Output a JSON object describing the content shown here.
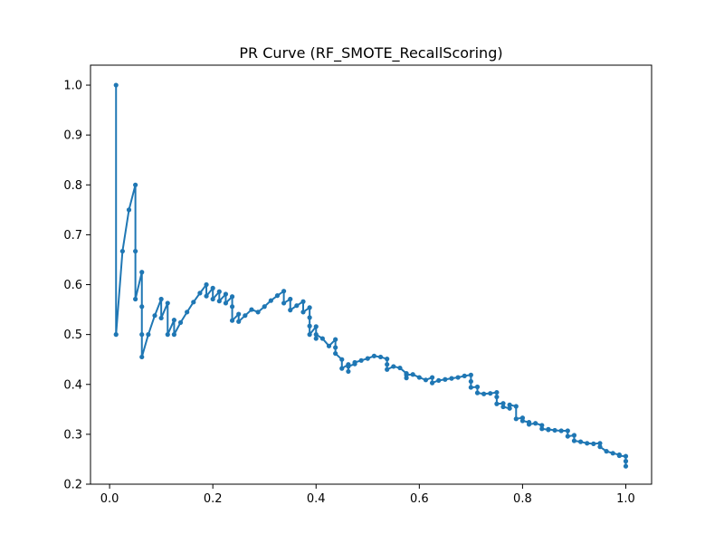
{
  "chart_data": {
    "type": "line",
    "title": "PR Curve (RF_SMOTE_RecallScoring)",
    "xlabel": "",
    "ylabel": "",
    "xlim": [
      -0.037,
      1.05
    ],
    "ylim": [
      0.2,
      1.04
    ],
    "xticks": [
      0.0,
      0.2,
      0.4,
      0.6,
      0.8,
      1.0
    ],
    "xtick_labels": [
      "0.0",
      "0.2",
      "0.4",
      "0.6",
      "0.8",
      "1.0"
    ],
    "yticks": [
      0.2,
      0.3,
      0.4,
      0.5,
      0.6,
      0.7,
      0.8,
      0.9,
      1.0
    ],
    "ytick_labels": [
      "0.2",
      "0.3",
      "0.4",
      "0.5",
      "0.6",
      "0.7",
      "0.8",
      "0.9",
      "1.0"
    ],
    "grid": false,
    "series": [
      {
        "color": "#1f77b4",
        "marker": "circle",
        "x": [
          0.0125,
          0.0125,
          0.025,
          0.0375,
          0.05,
          0.05,
          0.05,
          0.0625,
          0.0625,
          0.0625,
          0.0625,
          0.075,
          0.0875,
          0.1,
          0.1,
          0.1125,
          0.1125,
          0.125,
          0.125,
          0.1375,
          0.15,
          0.1625,
          0.175,
          0.1875,
          0.1875,
          0.2,
          0.2,
          0.2125,
          0.2125,
          0.225,
          0.225,
          0.2375,
          0.2375,
          0.2375,
          0.25,
          0.25,
          0.2625,
          0.275,
          0.2875,
          0.3,
          0.3125,
          0.325,
          0.3375,
          0.3375,
          0.35,
          0.35,
          0.3625,
          0.375,
          0.375,
          0.3875,
          0.3875,
          0.3875,
          0.3875,
          0.4,
          0.4,
          0.4,
          0.4125,
          0.425,
          0.4375,
          0.4375,
          0.4375,
          0.45,
          0.45,
          0.4625,
          0.4625,
          0.4625,
          0.475,
          0.475,
          0.4875,
          0.5,
          0.5125,
          0.525,
          0.5375,
          0.5375,
          0.5375,
          0.55,
          0.5625,
          0.575,
          0.575,
          0.575,
          0.5875,
          0.6,
          0.6125,
          0.625,
          0.625,
          0.6375,
          0.65,
          0.6625,
          0.675,
          0.6875,
          0.7,
          0.7,
          0.7,
          0.7125,
          0.7125,
          0.725,
          0.7375,
          0.75,
          0.75,
          0.75,
          0.7625,
          0.7625,
          0.775,
          0.775,
          0.7875,
          0.7875,
          0.8,
          0.8,
          0.8125,
          0.8125,
          0.825,
          0.8375,
          0.8375,
          0.85,
          0.85,
          0.8625,
          0.875,
          0.8875,
          0.8875,
          0.9,
          0.9,
          0.9125,
          0.925,
          0.9375,
          0.95,
          0.95,
          0.9625,
          0.975,
          0.9875,
          0.9875,
          1.0,
          1.0,
          1.0
        ],
        "y": [
          1.0,
          0.5,
          0.667,
          0.75,
          0.8,
          0.667,
          0.571,
          0.625,
          0.556,
          0.5,
          0.455,
          0.5,
          0.538,
          0.571,
          0.533,
          0.563,
          0.5,
          0.529,
          0.5,
          0.524,
          0.545,
          0.565,
          0.583,
          0.6,
          0.577,
          0.593,
          0.571,
          0.586,
          0.567,
          0.581,
          0.563,
          0.576,
          0.556,
          0.528,
          0.541,
          0.526,
          0.538,
          0.55,
          0.545,
          0.556,
          0.568,
          0.578,
          0.587,
          0.563,
          0.571,
          0.549,
          0.558,
          0.566,
          0.545,
          0.554,
          0.534,
          0.517,
          0.5,
          0.516,
          0.492,
          0.5,
          0.492,
          0.477,
          0.49,
          0.474,
          0.462,
          0.45,
          0.432,
          0.44,
          0.426,
          0.436,
          0.441,
          0.444,
          0.448,
          0.452,
          0.457,
          0.455,
          0.451,
          0.44,
          0.43,
          0.436,
          0.433,
          0.422,
          0.413,
          0.419,
          0.42,
          0.414,
          0.409,
          0.414,
          0.403,
          0.408,
          0.41,
          0.412,
          0.414,
          0.417,
          0.419,
          0.406,
          0.394,
          0.395,
          0.383,
          0.381,
          0.382,
          0.384,
          0.375,
          0.361,
          0.362,
          0.355,
          0.352,
          0.359,
          0.356,
          0.331,
          0.333,
          0.327,
          0.324,
          0.32,
          0.322,
          0.318,
          0.311,
          0.309,
          0.31,
          0.308,
          0.307,
          0.307,
          0.296,
          0.298,
          0.287,
          0.285,
          0.282,
          0.281,
          0.282,
          0.275,
          0.266,
          0.262,
          0.259,
          0.257,
          0.256,
          0.246,
          0.236
        ]
      }
    ]
  }
}
